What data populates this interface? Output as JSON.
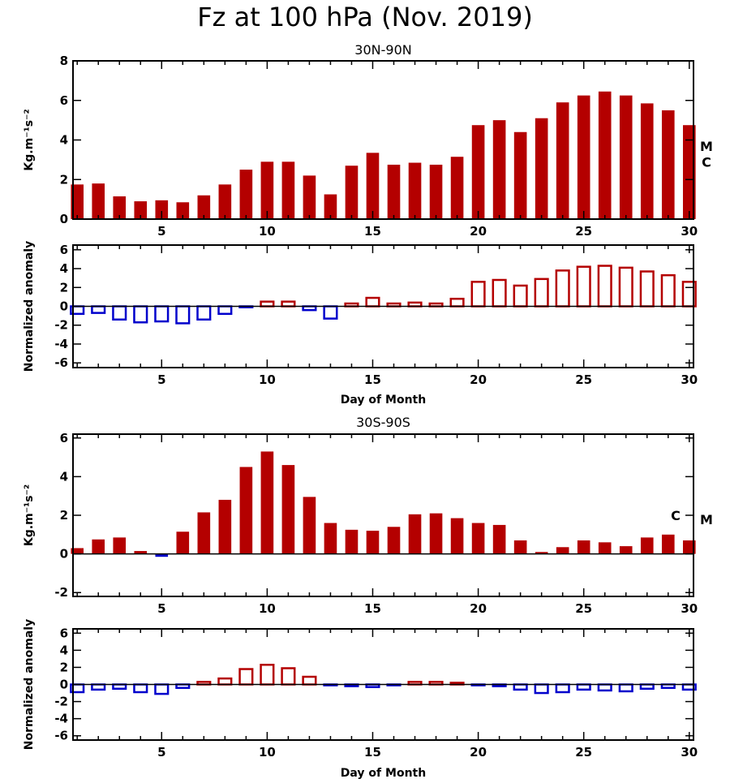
{
  "title": "Fz at 100 hPa (Nov. 2019)",
  "colors": {
    "positive": "#b40000",
    "negative": "#0000cc",
    "axis": "#000000"
  },
  "chart_data": [
    {
      "type": "bar",
      "subtitle": "30N-90N",
      "ylabel": "Kg.m⁻¹s⁻²",
      "xlabel": "",
      "x": [
        1,
        2,
        3,
        4,
        5,
        6,
        7,
        8,
        9,
        10,
        11,
        12,
        13,
        14,
        15,
        16,
        17,
        18,
        19,
        20,
        21,
        22,
        23,
        24,
        25,
        26,
        27,
        28,
        29,
        30
      ],
      "values": [
        1.75,
        1.8,
        1.15,
        0.9,
        0.95,
        0.85,
        1.2,
        1.75,
        2.5,
        2.9,
        2.9,
        2.2,
        1.25,
        2.7,
        3.35,
        2.75,
        2.85,
        2.75,
        3.15,
        4.75,
        5.0,
        4.4,
        5.1,
        5.9,
        6.25,
        6.45,
        6.25,
        5.85,
        5.5,
        4.75
      ],
      "ylim": [
        0,
        8
      ],
      "yticks": [
        0,
        2,
        4,
        6,
        8
      ],
      "xticks": [
        5,
        10,
        15,
        20,
        25,
        30
      ],
      "bar_style": "filled",
      "markers": [
        {
          "label": "M",
          "value": 3.7,
          "side": "right"
        },
        {
          "label": "C",
          "value": 2.9,
          "side": "right"
        }
      ]
    },
    {
      "type": "bar",
      "subtitle": "",
      "ylabel": "Normalized anomaly",
      "xlabel": "Day of Month",
      "x": [
        1,
        2,
        3,
        4,
        5,
        6,
        7,
        8,
        9,
        10,
        11,
        12,
        13,
        14,
        15,
        16,
        17,
        18,
        19,
        20,
        21,
        22,
        23,
        24,
        25,
        26,
        27,
        28,
        29,
        30
      ],
      "values": [
        -0.8,
        -0.7,
        -1.4,
        -1.7,
        -1.6,
        -1.8,
        -1.4,
        -0.8,
        -0.1,
        0.5,
        0.5,
        -0.4,
        -1.3,
        0.3,
        0.9,
        0.3,
        0.4,
        0.3,
        0.8,
        2.6,
        2.8,
        2.2,
        2.9,
        3.8,
        4.2,
        4.3,
        4.1,
        3.7,
        3.3,
        2.6
      ],
      "ylim": [
        -6.5,
        6.5
      ],
      "yticks": [
        -6,
        -4,
        -2,
        0,
        2,
        4,
        6
      ],
      "xticks": [
        5,
        10,
        15,
        20,
        25,
        30
      ],
      "bar_style": "outline"
    },
    {
      "type": "bar",
      "subtitle": "30S-90S",
      "ylabel": "Kg.m⁻¹s⁻²",
      "xlabel": "",
      "x": [
        1,
        2,
        3,
        4,
        5,
        6,
        7,
        8,
        9,
        10,
        11,
        12,
        13,
        14,
        15,
        16,
        17,
        18,
        19,
        20,
        21,
        22,
        23,
        24,
        25,
        26,
        27,
        28,
        29,
        30
      ],
      "values": [
        0.3,
        0.75,
        0.85,
        0.15,
        -0.15,
        1.15,
        2.15,
        2.8,
        4.5,
        5.3,
        4.6,
        2.95,
        1.6,
        1.25,
        1.2,
        1.4,
        2.05,
        2.1,
        1.85,
        1.6,
        1.5,
        0.7,
        0.1,
        0.35,
        0.7,
        0.6,
        0.4,
        0.85,
        1.0,
        0.7
      ],
      "ylim": [
        -2.2,
        6.2
      ],
      "yticks": [
        -2,
        0,
        2,
        4,
        6
      ],
      "xticks": [
        5,
        10,
        15,
        20,
        25,
        30
      ],
      "bar_style": "filled",
      "markers": [
        {
          "label": "C",
          "value": 2.0,
          "side": "inside"
        },
        {
          "label": "M",
          "value": 1.8,
          "side": "right"
        }
      ]
    },
    {
      "type": "bar",
      "subtitle": "",
      "ylabel": "Normalized anomaly",
      "xlabel": "Day of Month",
      "x": [
        1,
        2,
        3,
        4,
        5,
        6,
        7,
        8,
        9,
        10,
        11,
        12,
        13,
        14,
        15,
        16,
        17,
        18,
        19,
        20,
        21,
        22,
        23,
        24,
        25,
        26,
        27,
        28,
        29,
        30
      ],
      "values": [
        -0.9,
        -0.6,
        -0.5,
        -0.9,
        -1.1,
        -0.4,
        0.3,
        0.7,
        1.8,
        2.3,
        1.9,
        0.9,
        -0.1,
        -0.2,
        -0.3,
        -0.1,
        0.3,
        0.3,
        0.2,
        -0.1,
        -0.2,
        -0.6,
        -1.0,
        -0.9,
        -0.6,
        -0.7,
        -0.8,
        -0.5,
        -0.4,
        -0.6
      ],
      "ylim": [
        -6.5,
        6.5
      ],
      "yticks": [
        -6,
        -4,
        -2,
        0,
        2,
        4,
        6
      ],
      "xticks": [
        5,
        10,
        15,
        20,
        25,
        30
      ],
      "bar_style": "outline"
    }
  ]
}
